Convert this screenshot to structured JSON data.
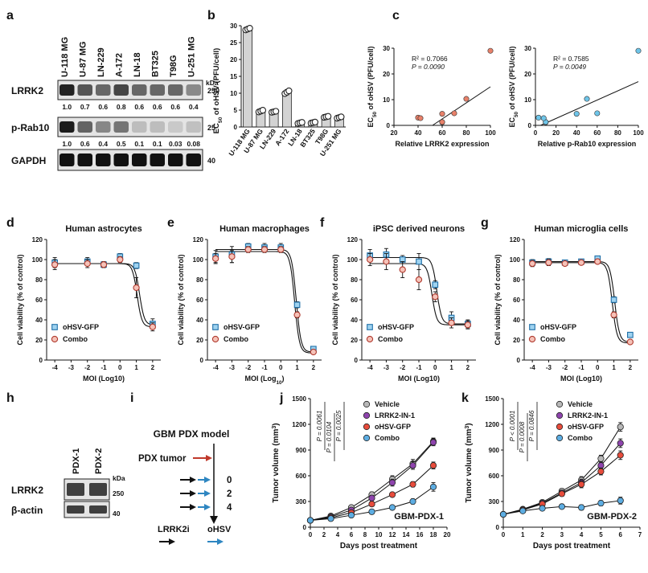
{
  "panel_letters": [
    "a",
    "b",
    "c",
    "d",
    "e",
    "f",
    "g",
    "h",
    "i",
    "j",
    "k"
  ],
  "blot_a": {
    "cell_lines": [
      "U-118 MG",
      "U-87 MG",
      "LN-229",
      "A-172",
      "LN-18",
      "BT325",
      "T98G",
      "U-251 MG"
    ],
    "rows": [
      {
        "label": "LRRK2",
        "values": [
          "1.0",
          "0.7",
          "0.6",
          "0.8",
          "0.6",
          "0.6",
          "0.6",
          "0.4"
        ],
        "marker": "250",
        "marker_color": "#222"
      },
      {
        "label": "p-Rab10",
        "values": [
          "1.0",
          "0.6",
          "0.4",
          "0.5",
          "0.1",
          "0.1",
          "0.03",
          "0.08"
        ],
        "marker": "25",
        "marker_color": "#222"
      },
      {
        "label": "GAPDH",
        "values": [],
        "marker": "40",
        "marker_color": "#222"
      }
    ],
    "kda_label": "kDa",
    "intensity_lrrk2": [
      1.0,
      0.7,
      0.6,
      0.8,
      0.6,
      0.6,
      0.6,
      0.4
    ],
    "intensity_prab10": [
      1.0,
      0.6,
      0.4,
      0.5,
      0.1,
      0.1,
      0.03,
      0.08
    ]
  },
  "blot_h": {
    "samples": [
      "PDX-1",
      "PDX-2"
    ],
    "rows": [
      {
        "label": "LRRK2",
        "marker": "250"
      },
      {
        "label": "β-actin",
        "marker": "40"
      }
    ],
    "kda_label": "kDa"
  },
  "schematic_i": {
    "title": "GBM PDX model",
    "tumor_label": "PDX tumor",
    "days": [
      "0",
      "2",
      "4"
    ],
    "legend_lrrk2i": "LRRK2i",
    "legend_ohsv": "oHSV",
    "colors": {
      "tumor": "#c0392b",
      "lrrk2i": "#111111",
      "ohsv": "#2e86c1"
    }
  },
  "chart_data": [
    {
      "panel": "b",
      "type": "bar",
      "ylabel_parts": [
        "EC",
        "50",
        " of oHSV (PFU/cell)"
      ],
      "ylim": [
        0,
        30
      ],
      "yticks": [
        0,
        5,
        10,
        15,
        20,
        25,
        30
      ],
      "categories": [
        "U-118 MG",
        "U-87 MG",
        "LN-229",
        "A-172",
        "LN-18",
        "BT325",
        "T98G",
        "U-251 MG"
      ],
      "values": [
        29.0,
        4.7,
        4.5,
        10.3,
        1.2,
        1.3,
        3.0,
        2.8
      ],
      "errors": [
        0.5,
        0.5,
        0.3,
        0.8,
        0.3,
        0.3,
        0.3,
        0.4
      ]
    },
    {
      "panel": "c1",
      "type": "scatter",
      "r2": "R² = 0.7066",
      "p": "P = 0.0090",
      "xlabel": "Relative LRRK2 expression",
      "ylabel_parts": [
        "EC",
        "50",
        " of oHSV (PFU/cell)"
      ],
      "xlim": [
        20,
        100
      ],
      "ylim": [
        0,
        30
      ],
      "xticks": [
        20,
        40,
        60,
        80,
        100
      ],
      "yticks": [
        0,
        10,
        20,
        30
      ],
      "points": [
        [
          100,
          29
        ],
        [
          70,
          4.7
        ],
        [
          60,
          4.5
        ],
        [
          80,
          10.3
        ],
        [
          60,
          1.2
        ],
        [
          60,
          1.3
        ],
        [
          40,
          3.0
        ],
        [
          42,
          2.8
        ]
      ],
      "fit": [
        [
          52,
          0
        ],
        [
          100,
          15
        ]
      ],
      "color": "#e8816a"
    },
    {
      "panel": "c2",
      "type": "scatter",
      "r2": "R² = 0.7585",
      "p": "P = 0.0049",
      "xlabel": "Relative p-Rab10 expression",
      "ylabel_parts": [
        "EC",
        "50",
        " of oHSV (PFU/cell)"
      ],
      "xlim": [
        0,
        100
      ],
      "ylim": [
        0,
        30
      ],
      "xticks": [
        0,
        20,
        40,
        60,
        80,
        100
      ],
      "yticks": [
        0,
        10,
        20,
        30
      ],
      "points": [
        [
          100,
          29
        ],
        [
          60,
          4.7
        ],
        [
          40,
          4.5
        ],
        [
          50,
          10.3
        ],
        [
          10,
          1.2
        ],
        [
          10,
          1.3
        ],
        [
          3,
          3.0
        ],
        [
          8,
          2.8
        ]
      ],
      "fit": [
        [
          5,
          0
        ],
        [
          100,
          17
        ]
      ],
      "color": "#6ec5e9"
    },
    {
      "panel": "d",
      "type": "line",
      "title": "Human astrocytes",
      "xlabel": "MOI (Log10)",
      "ylabel": "Cell viability (% of control)",
      "xlim": [
        -4.5,
        2.5
      ],
      "ylim": [
        0,
        120
      ],
      "xticks": [
        -4,
        -3,
        -2,
        -1,
        0,
        1,
        2
      ],
      "yticks": [
        0,
        20,
        40,
        60,
        80,
        100,
        120
      ],
      "series": [
        {
          "name": "oHSV-GFP",
          "marker": "square",
          "x": [
            -4,
            -2,
            -1,
            0,
            1,
            2
          ],
          "y": [
            97,
            98,
            95,
            103,
            94,
            36
          ],
          "err": [
            5,
            4,
            3,
            3,
            3,
            5
          ],
          "top": 96,
          "bottom": 35,
          "ec50": 1.2
        },
        {
          "name": "Combo",
          "marker": "circle",
          "x": [
            -4,
            -2,
            -1,
            0,
            1,
            2
          ],
          "y": [
            95,
            96,
            95,
            100,
            72,
            33
          ],
          "err": [
            5,
            4,
            3,
            3,
            10,
            4
          ],
          "top": 96,
          "bottom": 33,
          "ec50": 1.05
        }
      ]
    },
    {
      "panel": "e",
      "type": "line",
      "title": "Human macrophages",
      "xlabel_parts": [
        "MOI (Log",
        "10",
        ")"
      ],
      "ylabel": "Cell viability (% of control)",
      "xlim": [
        -4.5,
        2.5
      ],
      "ylim": [
        0,
        120
      ],
      "xticks": [
        -4,
        -3,
        -2,
        -1,
        0,
        1,
        2
      ],
      "yticks": [
        0,
        20,
        40,
        60,
        80,
        100,
        120
      ],
      "series": [
        {
          "name": "oHSV-GFP",
          "marker": "square",
          "x": [
            -4,
            -3,
            -2,
            -1,
            0,
            1,
            2
          ],
          "y": [
            103,
            105,
            113,
            112,
            112,
            55,
            11
          ],
          "err": [
            6,
            8,
            3,
            4,
            4,
            3,
            2
          ],
          "top": 110,
          "bottom": 8,
          "ec50": 0.95
        },
        {
          "name": "Combo",
          "marker": "circle",
          "x": [
            -4,
            -3,
            -2,
            -1,
            0,
            1,
            2
          ],
          "y": [
            101,
            103,
            110,
            110,
            110,
            45,
            8
          ],
          "err": [
            5,
            6,
            3,
            3,
            3,
            3,
            2
          ],
          "top": 108,
          "bottom": 7,
          "ec50": 0.85
        }
      ]
    },
    {
      "panel": "f",
      "type": "line",
      "title": "iPSC derived neurons",
      "xlabel": "MOI (Log10)",
      "ylabel": "Cell viability (% of control)",
      "xlim": [
        -4.5,
        2.5
      ],
      "ylim": [
        0,
        120
      ],
      "xticks": [
        -4,
        -3,
        -2,
        -1,
        0,
        1,
        2
      ],
      "yticks": [
        0,
        20,
        40,
        60,
        80,
        100,
        120
      ],
      "series": [
        {
          "name": "oHSV-GFP",
          "marker": "square",
          "x": [
            -4,
            -3,
            -2,
            -1,
            0,
            1,
            2
          ],
          "y": [
            104,
            105,
            100,
            98,
            75,
            42,
            36
          ],
          "err": [
            6,
            6,
            4,
            8,
            4,
            6,
            4
          ],
          "top": 102,
          "bottom": 36,
          "ec50": 0.1
        },
        {
          "name": "Combo",
          "marker": "circle",
          "x": [
            -4,
            -3,
            -2,
            -1,
            0,
            1,
            2
          ],
          "y": [
            100,
            98,
            90,
            80,
            63,
            37,
            35
          ],
          "err": [
            6,
            8,
            8,
            10,
            5,
            5,
            4
          ],
          "top": 96,
          "bottom": 35,
          "ec50": -0.2
        }
      ]
    },
    {
      "panel": "g",
      "type": "line",
      "title": "Human microglia cells",
      "xlabel": "MOI (Log10)",
      "ylabel": "Cell viability (% of control)",
      "xlim": [
        -4.5,
        2.5
      ],
      "ylim": [
        0,
        120
      ],
      "xticks": [
        -4,
        -3,
        -2,
        -1,
        0,
        1,
        2
      ],
      "yticks": [
        0,
        20,
        40,
        60,
        80,
        100,
        120
      ],
      "series": [
        {
          "name": "oHSV-GFP",
          "marker": "square",
          "x": [
            -4,
            -3,
            -2,
            -1,
            0,
            1,
            2
          ],
          "y": [
            97,
            98,
            97,
            98,
            101,
            60,
            25
          ],
          "err": [
            3,
            3,
            2,
            2,
            2,
            3,
            2
          ],
          "top": 98,
          "bottom": 18,
          "ec50": 1.05
        },
        {
          "name": "Combo",
          "marker": "circle",
          "x": [
            -4,
            -3,
            -2,
            -1,
            0,
            1,
            2
          ],
          "y": [
            96,
            97,
            96,
            97,
            98,
            45,
            18
          ],
          "err": [
            3,
            3,
            2,
            2,
            2,
            3,
            2
          ],
          "top": 97,
          "bottom": 17,
          "ec50": 0.9
        }
      ]
    },
    {
      "panel": "j",
      "type": "line",
      "annotation": "GBM-PDX-1",
      "xlabel": "Days post treatment",
      "ylabel_parts": [
        "Tumor volume (mm",
        "3",
        ")"
      ],
      "xlim": [
        0,
        20
      ],
      "ylim": [
        0,
        1500
      ],
      "xticks": [
        0,
        2,
        4,
        6,
        8,
        10,
        12,
        14,
        16,
        18,
        20
      ],
      "yticks": [
        0,
        300,
        600,
        900,
        1200,
        1500
      ],
      "pvalues": [
        "P = 0.0061",
        "P = 0.0104",
        "P = 0.0025"
      ],
      "series": [
        {
          "name": "Vehicle",
          "color": "#b8b8b8",
          "x": [
            0,
            3,
            6,
            9,
            12,
            15,
            18
          ],
          "y": [
            80,
            130,
            230,
            380,
            560,
            740,
            1000
          ],
          "err": [
            10,
            15,
            20,
            30,
            40,
            50,
            40
          ]
        },
        {
          "name": "LRRK2-IN-1",
          "color": "#8e44ad",
          "x": [
            0,
            3,
            6,
            9,
            12,
            15,
            18
          ],
          "y": [
            80,
            120,
            200,
            340,
            520,
            720,
            990
          ],
          "err": [
            10,
            15,
            20,
            30,
            40,
            45,
            40
          ]
        },
        {
          "name": "oHSV-GFP",
          "color": "#e74c3c",
          "x": [
            0,
            3,
            6,
            9,
            12,
            15,
            18
          ],
          "y": [
            80,
            110,
            170,
            270,
            380,
            500,
            720
          ],
          "err": [
            10,
            12,
            15,
            20,
            25,
            30,
            40
          ]
        },
        {
          "name": "Combo",
          "color": "#5dade2",
          "x": [
            0,
            3,
            6,
            9,
            12,
            15,
            18
          ],
          "y": [
            80,
            100,
            140,
            180,
            230,
            300,
            470
          ],
          "err": [
            10,
            12,
            15,
            15,
            20,
            30,
            50
          ]
        }
      ]
    },
    {
      "panel": "k",
      "type": "line",
      "annotation": "GBM-PDX-2",
      "xlabel": "Days post treatment",
      "ylabel_parts": [
        "Tumor volume (mm",
        "3",
        ")"
      ],
      "xlim": [
        0,
        7
      ],
      "ylim": [
        0,
        1500
      ],
      "xticks": [
        0,
        1,
        2,
        3,
        4,
        5,
        6,
        7
      ],
      "yticks": [
        0,
        300,
        600,
        900,
        1200,
        1500
      ],
      "pvalues": [
        "P < 0.0001",
        "P = 0.0008",
        "P = 0.0846"
      ],
      "series": [
        {
          "name": "Vehicle",
          "color": "#b8b8b8",
          "x": [
            0,
            1,
            2,
            3,
            4,
            5,
            6
          ],
          "y": [
            150,
            210,
            290,
            420,
            550,
            800,
            1170
          ],
          "err": [
            10,
            20,
            25,
            30,
            40,
            40,
            50
          ]
        },
        {
          "name": "LRRK2-IN-1",
          "color": "#8e44ad",
          "x": [
            0,
            1,
            2,
            3,
            4,
            5,
            6
          ],
          "y": [
            150,
            205,
            280,
            400,
            520,
            720,
            980
          ],
          "err": [
            10,
            20,
            25,
            30,
            40,
            40,
            50
          ]
        },
        {
          "name": "oHSV-GFP",
          "color": "#e74c3c",
          "x": [
            0,
            1,
            2,
            3,
            4,
            5,
            6
          ],
          "y": [
            150,
            200,
            270,
            390,
            500,
            650,
            840
          ],
          "err": [
            10,
            20,
            25,
            30,
            40,
            40,
            50
          ]
        },
        {
          "name": "Combo",
          "color": "#5dade2",
          "x": [
            0,
            1,
            2,
            3,
            4,
            5,
            6
          ],
          "y": [
            150,
            190,
            220,
            240,
            230,
            280,
            310
          ],
          "err": [
            10,
            20,
            20,
            25,
            30,
            30,
            40
          ]
        }
      ]
    }
  ]
}
